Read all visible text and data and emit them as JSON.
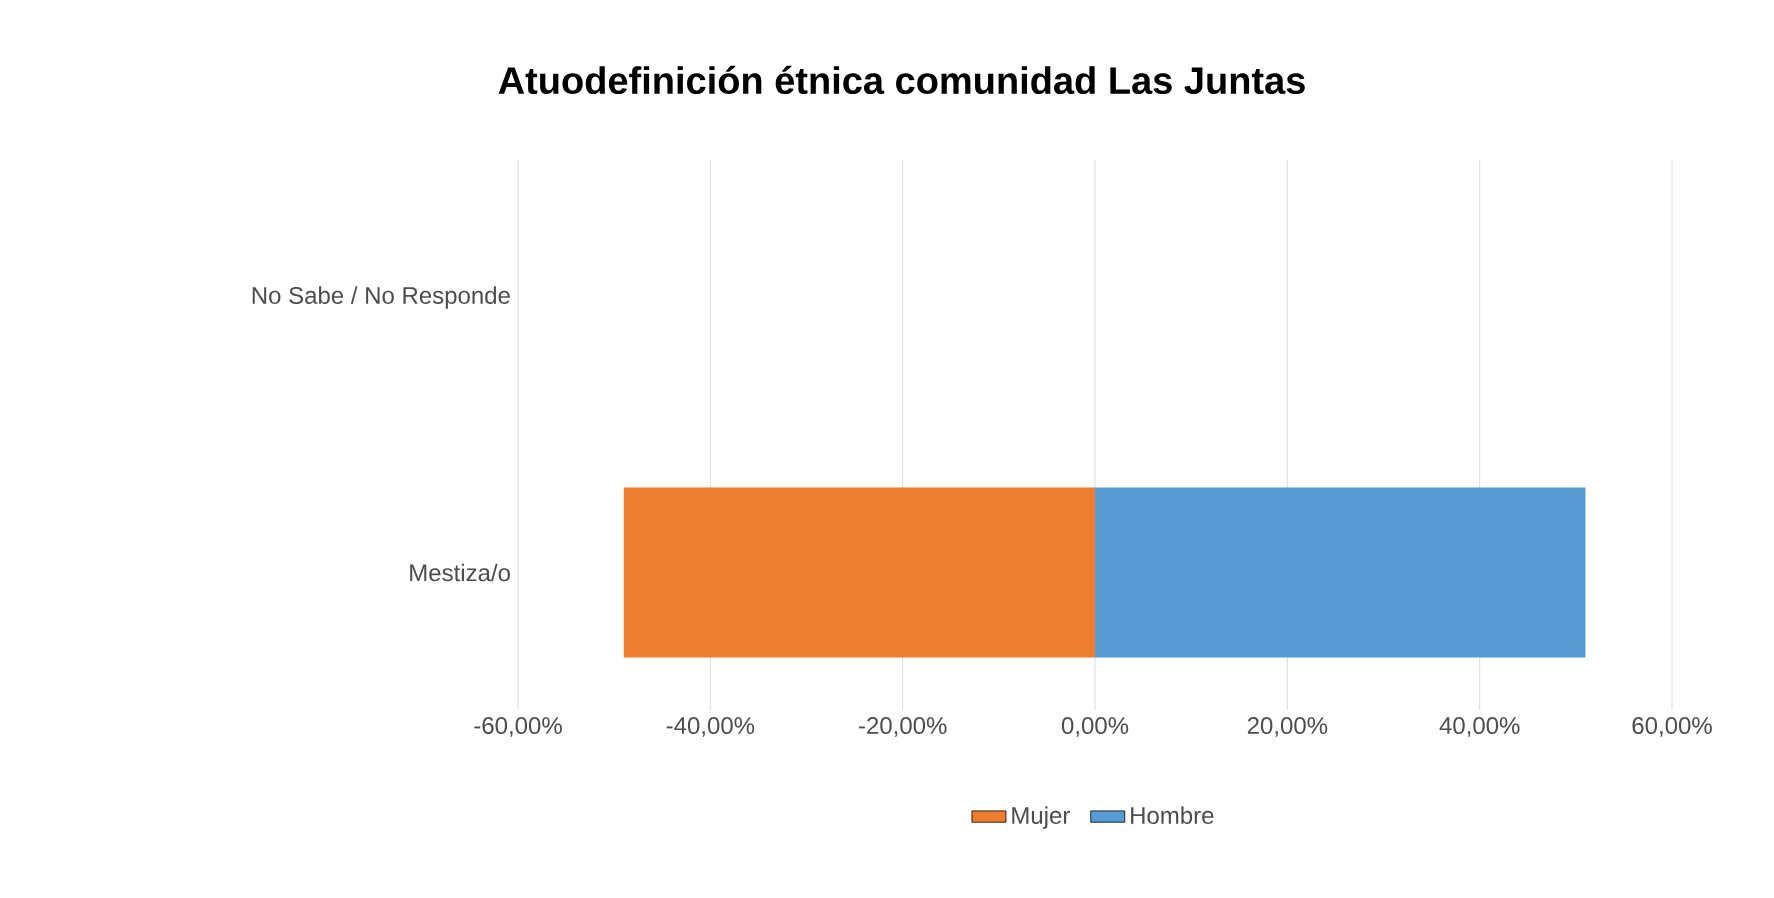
{
  "chart_data": {
    "type": "bar",
    "orientation": "horizontal",
    "title": "Atuodefinición  étnica comunidad  Las Juntas",
    "categories": [
      "No Sabe / No Responde",
      "Mestiza/o"
    ],
    "series": [
      {
        "name": "Mujer",
        "color": "#ed7d31",
        "values": [
          null,
          -49
        ]
      },
      {
        "name": "Hombre",
        "color": "#5b9bd5",
        "values": [
          null,
          51
        ]
      }
    ],
    "xlim": [
      -60,
      60
    ],
    "xticks": [
      {
        "value": -60,
        "label": "-60,00%"
      },
      {
        "value": -40,
        "label": "-40,00%"
      },
      {
        "value": -20,
        "label": "-20,00%"
      },
      {
        "value": 0,
        "label": "0,00%"
      },
      {
        "value": 20,
        "label": "20,00%"
      },
      {
        "value": 40,
        "label": "40,00%"
      },
      {
        "value": 60,
        "label": "60,00%"
      }
    ],
    "grid": "x",
    "legend": "bottom",
    "stacked": true
  }
}
